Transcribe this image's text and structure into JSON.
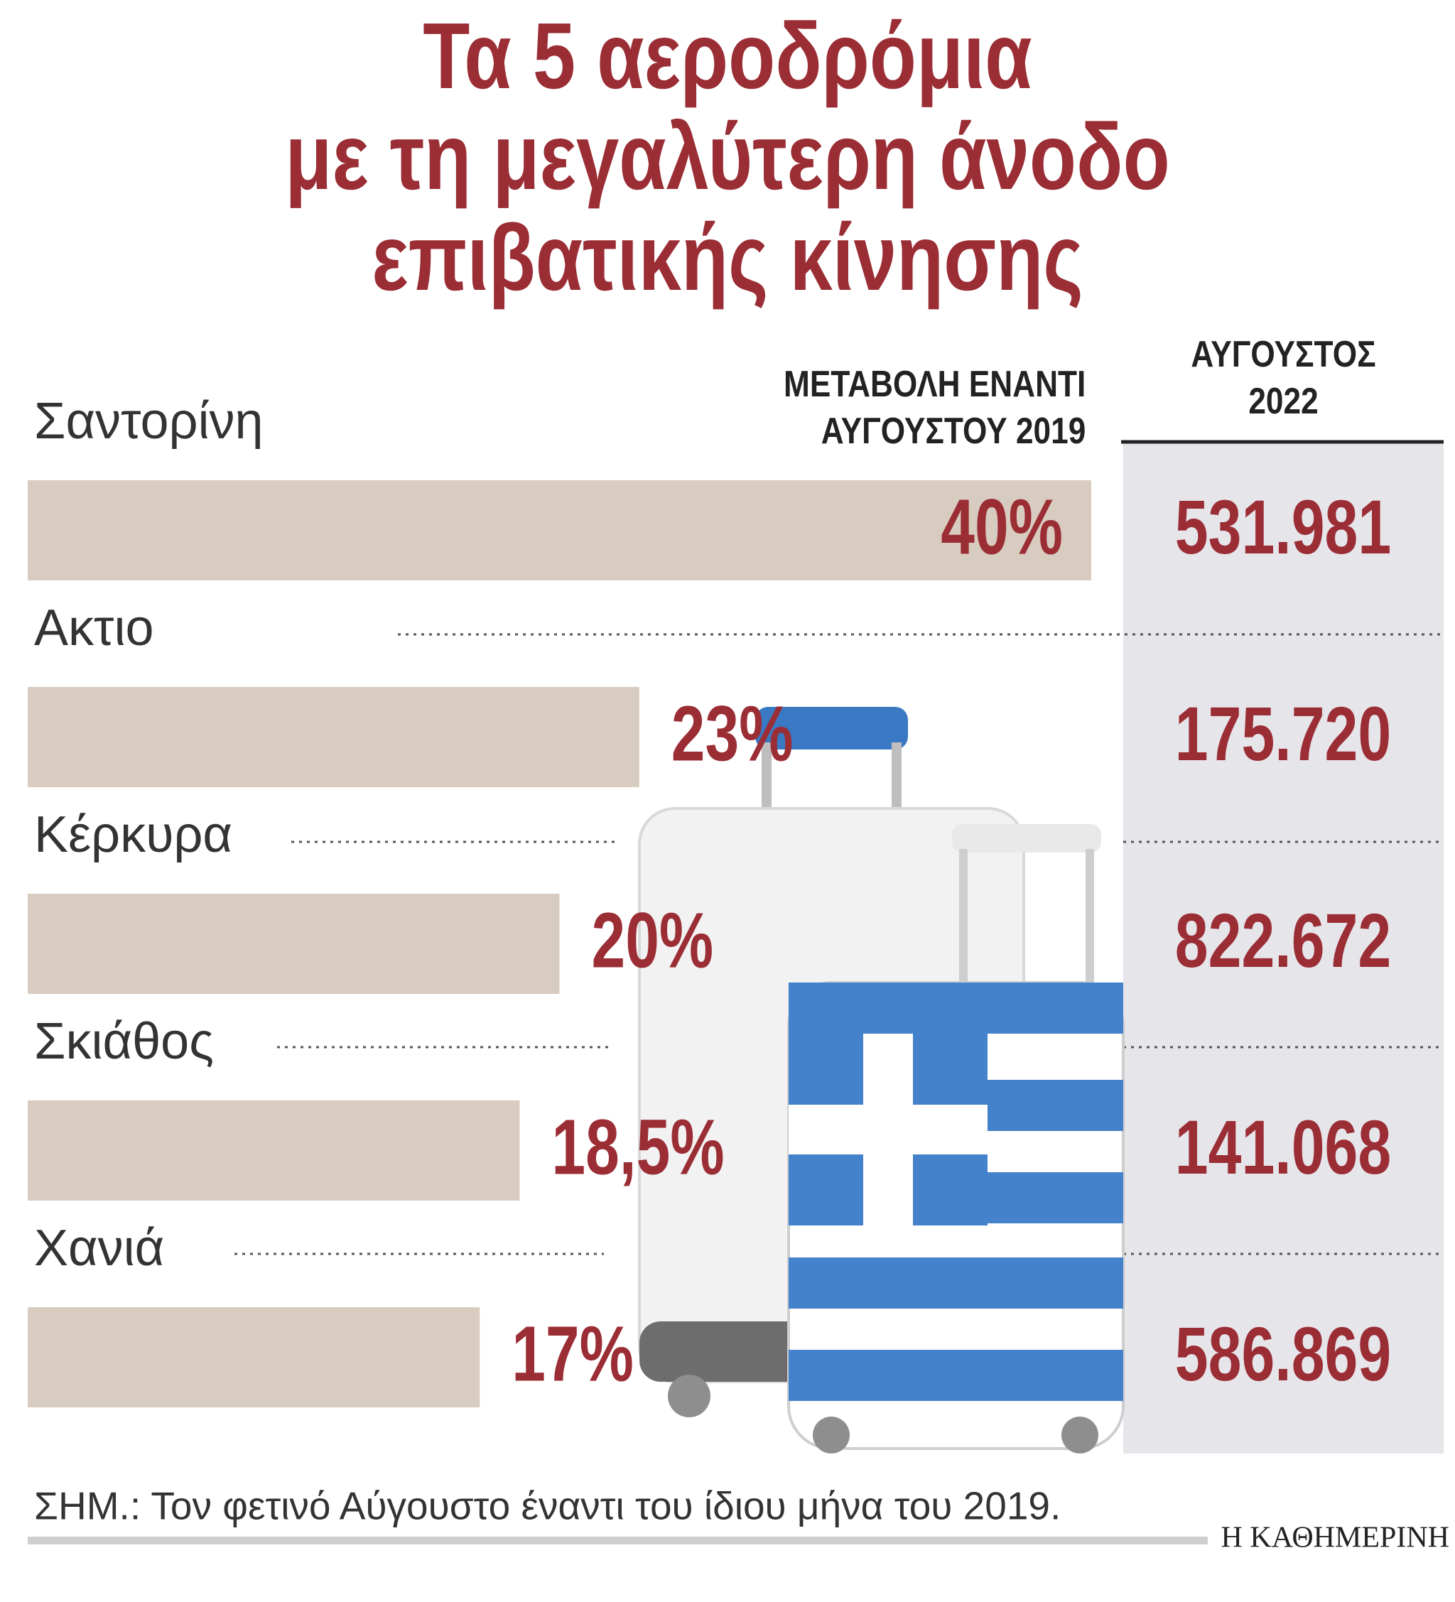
{
  "chart_data": {
    "type": "bar",
    "title": "Τα 5 αεροδρόμια\nμε τη μεγαλύτερη άνοδο\nεπιβατικής κίνησης",
    "value_header": "ΜΕΤΑΒΟΛΗ ΕΝΑΝΤΙ\nΑΥΓΟΥΣΤΟΥ 2019",
    "categories": [
      "Σαντορίνη",
      "Ακτιο",
      "Κέρκυρα",
      "Σκιάθος",
      "Χανιά"
    ],
    "values": [
      40,
      23,
      20,
      18.5,
      17
    ],
    "value_labels": [
      "40%",
      "23%",
      "20%",
      "18,5%",
      "17%"
    ],
    "color": "#d8cbbf",
    "table_column": {
      "header": "ΑΥΓΟΥΣΤΟΣ\n2022",
      "values": [
        "531.981",
        "175.720",
        "822.672",
        "141.068",
        "586.869"
      ]
    },
    "note": "ΣΗΜ.: Τον φετινό Αύγουστο έναντι του ίδιου μήνα του 2019.",
    "source": "Η ΚΑΘΗΜΕΡΙΝΗ"
  }
}
